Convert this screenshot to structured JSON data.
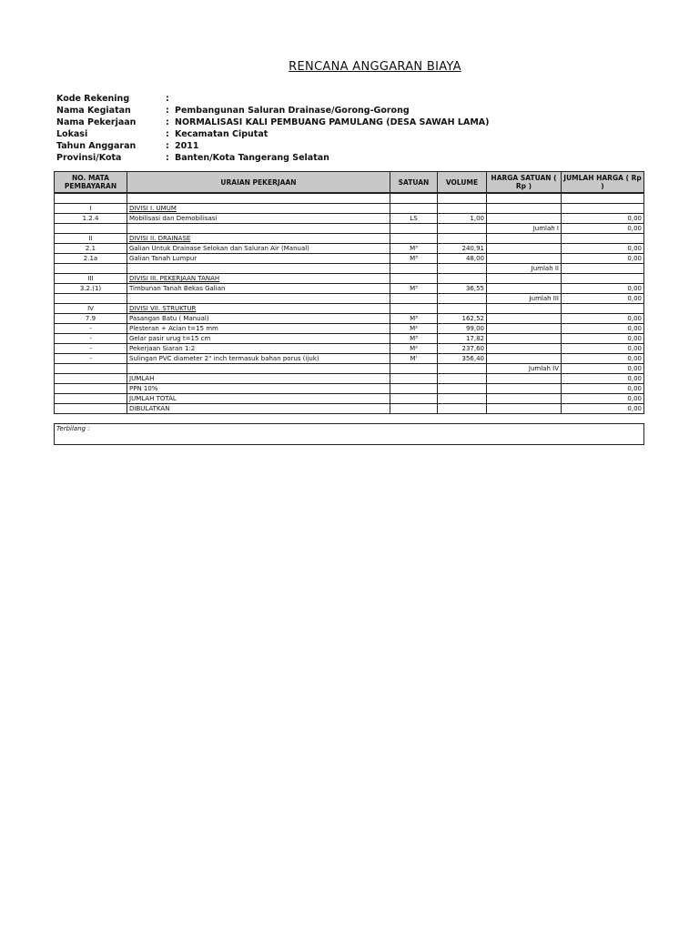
{
  "title": "RENCANA ANGGARAN BIAYA",
  "separator": ":",
  "info": [
    {
      "label": "Kode Rekening",
      "value": null
    },
    {
      "label": "Nama Kegiatan",
      "value": "Pembangunan Saluran Drainase/Gorong-Gorong"
    },
    {
      "label": "Nama Pekerjaan",
      "value": "NORMALISASI KALI PEMBUANG PAMULANG (DESA SAWAH LAMA)"
    },
    {
      "label": "Lokasi",
      "value": "Kecamatan Ciputat"
    },
    {
      "label": "Tahun Anggaran",
      "value": "2011"
    },
    {
      "label": "Provinsi/Kota",
      "value": "Banten/Kota Tangerang Selatan"
    }
  ],
  "table": {
    "header": [
      "NO. MATA PEMBAYARAN",
      "URAIAN PEKERJAAN",
      "SATUAN",
      "VOLUME",
      "HARGA SATUAN ( Rp )",
      "JUMLAH HARGA ( Rp )"
    ],
    "rows": [
      [
        null,
        null,
        null,
        null,
        null,
        null
      ],
      [
        "I",
        "DIVISI I. UMUM",
        null,
        null,
        null,
        null
      ],
      [
        "1.2.4",
        "Mobilisasi dan Demobilisasi",
        "LS",
        "1,00",
        null,
        "0,00"
      ],
      [
        null,
        null,
        null,
        null,
        "Jumlah I",
        "0,00"
      ],
      [
        "II",
        "DIVISI II. DRAINASE",
        null,
        null,
        null,
        null
      ],
      [
        "2.1",
        "Galian Untuk Drainase Selokan dan Saluran Air (Manual)",
        "M³",
        "240,91",
        null,
        "0,00"
      ],
      [
        "2.1a",
        "Galian Tanah Lumpur",
        "M³",
        "48,00",
        null,
        "0,00"
      ],
      [
        null,
        null,
        null,
        null,
        "Jumlah II",
        null
      ],
      [
        "III",
        "DIVISI III. PEKERJAAN TANAH",
        null,
        null,
        null,
        null
      ],
      [
        "3.2.(1)",
        "Timbunan Tanah Bekas Galian",
        "M³",
        "36,55",
        null,
        "0,00"
      ],
      [
        null,
        null,
        null,
        null,
        "Jumlah III",
        "0,00"
      ],
      [
        "IV",
        "DIVISI VII. STRUKTUR",
        null,
        null,
        null,
        null
      ],
      [
        "7.9",
        "Pasangan Batu ( Manual)",
        "M³",
        "162,52",
        null,
        "0,00"
      ],
      [
        "-",
        "Plesteran + Acian t=15 mm",
        "M²",
        "99,00",
        null,
        "0,00"
      ],
      [
        "-",
        "Gelar pasir urug t=15 cm",
        "M³",
        "17,82",
        null,
        "0,00"
      ],
      [
        "-",
        "Pekerjaan Siaran 1:2",
        "M²",
        "237,60",
        null,
        "0,00"
      ],
      [
        "-",
        "Sulingan PVC diameter 2\" inch termasuk bahan porus (ijuk)",
        "M'",
        "356,40",
        null,
        "0,00"
      ],
      [
        null,
        null,
        null,
        null,
        "Jumlah IV",
        "0,00"
      ],
      [
        null,
        "JUMLAH",
        null,
        null,
        null,
        "0,00"
      ],
      [
        null,
        "PPN 10%",
        null,
        null,
        null,
        "0,00"
      ],
      [
        null,
        "JUMLAH TOTAL",
        null,
        null,
        null,
        "0,00"
      ],
      [
        null,
        "DIBULATKAN",
        null,
        null,
        null,
        "0,00"
      ]
    ]
  },
  "terbilang": "Terbilang :"
}
